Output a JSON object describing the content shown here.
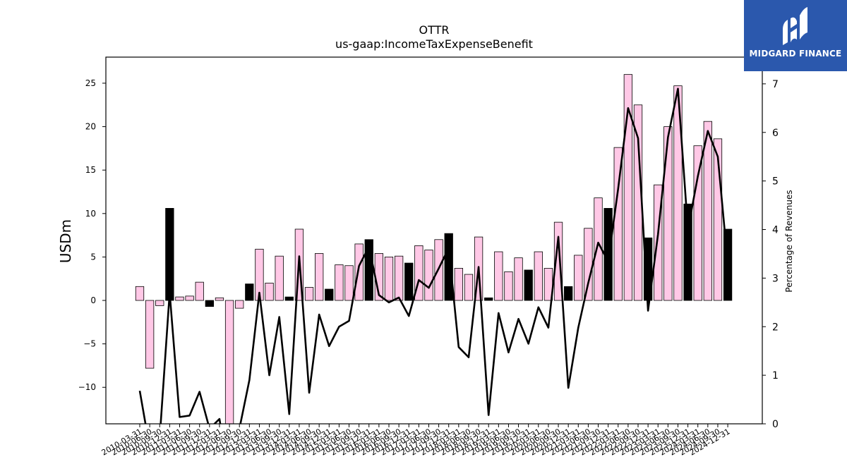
{
  "chart_data": {
    "type": "bar",
    "title": "OTTR",
    "subtitle": "us-gaap:IncomeTaxExpenseBenefit",
    "ylabel": "USDm",
    "y2label": "Percentage of Revenues",
    "ylim": [
      -14.2,
      28
    ],
    "y2lim": [
      0,
      7.55
    ],
    "yticks": [
      -10,
      -5,
      0,
      5,
      10,
      15,
      20,
      25
    ],
    "y2ticks": [
      0,
      1,
      2,
      3,
      4,
      5,
      6,
      7
    ],
    "categories": [
      "2010-03-31",
      "2010-06-30",
      "2010-09-30",
      "2010-12-31",
      "2011-03-31",
      "2011-06-30",
      "2011-09-30",
      "2011-12-31",
      "2012-03-31",
      "2012-06-30",
      "2012-09-30",
      "2012-12-31",
      "2013-03-31",
      "2013-06-30",
      "2013-09-30",
      "2013-12-31",
      "2014-03-31",
      "2014-06-30",
      "2014-09-30",
      "2014-12-31",
      "2015-03-31",
      "2015-06-30",
      "2015-09-30",
      "2015-12-31",
      "2016-03-31",
      "2016-06-30",
      "2016-09-30",
      "2016-12-31",
      "2017-03-31",
      "2017-06-30",
      "2017-09-30",
      "2017-12-31",
      "2018-03-31",
      "2018-06-30",
      "2018-09-30",
      "2018-12-31",
      "2019-03-31",
      "2019-06-30",
      "2019-09-30",
      "2019-12-31",
      "2020-03-31",
      "2020-06-30",
      "2020-09-30",
      "2020-12-31",
      "2021-03-31",
      "2021-06-30",
      "2021-09-30",
      "2021-12-31",
      "2022-03-31",
      "2022-06-30",
      "2022-09-30",
      "2022-12-31",
      "2023-03-31",
      "2023-06-30",
      "2023-09-30",
      "2023-12-31",
      "2024-03-31",
      "2024-06-30",
      "2024-09-30",
      "2024-12-31"
    ],
    "series": [
      {
        "kind": "bar",
        "axis": "left",
        "values": [
          1.6,
          -7.8,
          -0.6,
          10.6,
          0.4,
          0.5,
          2.1,
          -0.7,
          0.3,
          -14.5,
          -0.9,
          1.9,
          5.9,
          2.0,
          5.1,
          0.4,
          8.2,
          1.5,
          5.4,
          1.3,
          4.1,
          4.0,
          6.5,
          7.0,
          5.4,
          5.0,
          5.1,
          4.3,
          6.3,
          5.8,
          7.0,
          7.7,
          3.7,
          3.0,
          7.3,
          0.3,
          5.6,
          3.3,
          4.9,
          3.5,
          5.6,
          3.7,
          9.0,
          1.6,
          5.2,
          8.3,
          11.8,
          10.6,
          17.6,
          26.0,
          22.5,
          7.2,
          13.3,
          20.0,
          24.7,
          11.1,
          17.8,
          20.6,
          18.6,
          8.2
        ],
        "colors": [
          "#ffc8e6",
          "#ffc8e6",
          "#ffc8e6",
          "#000000",
          "#ffc8e6",
          "#ffc8e6",
          "#ffc8e6",
          "#000000",
          "#ffc8e6",
          "#ffc8e6",
          "#ffc8e6",
          "#000000",
          "#ffc8e6",
          "#ffc8e6",
          "#ffc8e6",
          "#000000",
          "#ffc8e6",
          "#ffc8e6",
          "#ffc8e6",
          "#000000",
          "#ffc8e6",
          "#ffc8e6",
          "#ffc8e6",
          "#000000",
          "#ffc8e6",
          "#ffc8e6",
          "#ffc8e6",
          "#000000",
          "#ffc8e6",
          "#ffc8e6",
          "#ffc8e6",
          "#000000",
          "#ffc8e6",
          "#ffc8e6",
          "#ffc8e6",
          "#000000",
          "#ffc8e6",
          "#ffc8e6",
          "#ffc8e6",
          "#000000",
          "#ffc8e6",
          "#ffc8e6",
          "#ffc8e6",
          "#000000",
          "#ffc8e6",
          "#ffc8e6",
          "#ffc8e6",
          "#000000",
          "#ffc8e6",
          "#ffc8e6",
          "#ffc8e6",
          "#000000",
          "#ffc8e6",
          "#ffc8e6",
          "#ffc8e6",
          "#000000",
          "#ffc8e6",
          "#ffc8e6",
          "#ffc8e6",
          "#000000"
        ]
      },
      {
        "kind": "line",
        "axis": "right",
        "color": "#000000",
        "values": [
          0.68,
          -0.5,
          -0.3,
          2.7,
          0.14,
          0.17,
          0.66,
          -0.1,
          0.1,
          -1.2,
          -0.1,
          0.9,
          2.7,
          1.0,
          2.2,
          0.2,
          3.45,
          0.64,
          2.25,
          1.6,
          2.0,
          2.12,
          3.25,
          3.65,
          2.65,
          2.5,
          2.6,
          2.22,
          2.96,
          2.8,
          3.2,
          3.62,
          1.58,
          1.37,
          3.23,
          0.18,
          2.28,
          1.47,
          2.16,
          1.65,
          2.4,
          1.98,
          3.85,
          0.74,
          1.98,
          2.9,
          3.73,
          3.34,
          4.84,
          6.5,
          5.88,
          2.33,
          3.9,
          5.9,
          6.9,
          4.0,
          5.1,
          6.03,
          5.5,
          3.3
        ]
      }
    ],
    "grid": false,
    "legend": "none"
  },
  "logo": {
    "text": "MIDGARD FINANCE",
    "bg_color": "#2b58ad"
  }
}
